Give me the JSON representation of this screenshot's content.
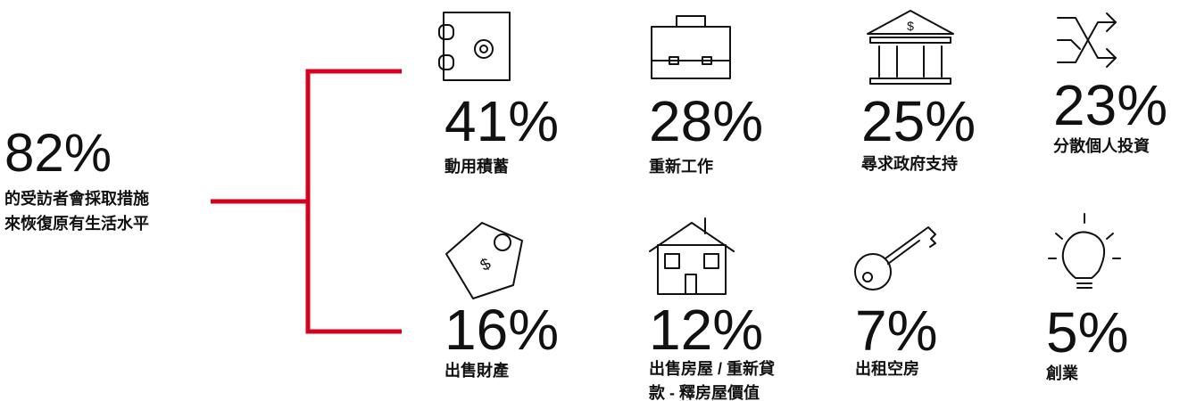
{
  "summary": {
    "value": "82%",
    "lines": [
      "的受訪者會採取措施",
      "來恢復原有生活水平"
    ]
  },
  "items": [
    {
      "value": "41%",
      "lines": [
        "動用積蓄"
      ]
    },
    {
      "value": "28%",
      "lines": [
        "重新工作"
      ]
    },
    {
      "value": "25%",
      "lines": [
        "尋求政府支持"
      ]
    },
    {
      "value": "23%",
      "lines": [
        "分散個人投資"
      ]
    },
    {
      "value": "16%",
      "lines": [
        "出售財產"
      ]
    },
    {
      "value": "12%",
      "lines": [
        "出售房屋 / 重新貸",
        "款 - 釋房屋價值"
      ]
    },
    {
      "value": "7%",
      "lines": [
        "出租空房"
      ]
    },
    {
      "value": "5%",
      "lines": [
        "創業"
      ]
    }
  ]
}
